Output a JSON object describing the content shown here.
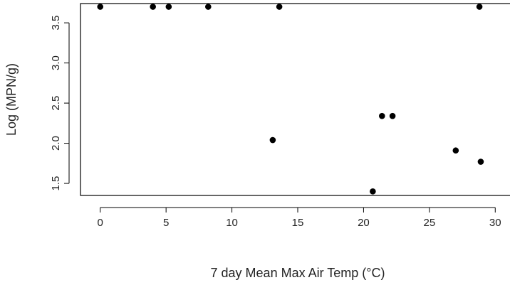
{
  "chart_data": {
    "type": "scatter",
    "title": "",
    "xlabel": "7 day Mean Max Air Temp (°C)",
    "ylabel": "Log (MPN/g)",
    "xlim": [
      -1.5,
      31.5
    ],
    "ylim": [
      1.35,
      3.74
    ],
    "xticks": [
      0,
      5,
      10,
      15,
      20,
      25,
      30
    ],
    "yticks": [
      1.5,
      2.0,
      2.5,
      3.0,
      3.5
    ],
    "xtick_labels": [
      "0",
      "5",
      "10",
      "15",
      "20",
      "25",
      "30"
    ],
    "ytick_labels": [
      "1.5",
      "2.0",
      "2.5",
      "3.0",
      "3.5"
    ],
    "grid": false,
    "legend": "none",
    "point_color": "#000000",
    "points": [
      {
        "x": 0.0,
        "y": 3.7
      },
      {
        "x": 4.0,
        "y": 3.7
      },
      {
        "x": 5.2,
        "y": 3.7
      },
      {
        "x": 8.2,
        "y": 3.7
      },
      {
        "x": 13.6,
        "y": 3.7
      },
      {
        "x": 28.8,
        "y": 3.7
      },
      {
        "x": 13.1,
        "y": 2.04
      },
      {
        "x": 20.7,
        "y": 1.4
      },
      {
        "x": 21.4,
        "y": 2.34
      },
      {
        "x": 22.2,
        "y": 2.34
      },
      {
        "x": 27.0,
        "y": 1.91
      },
      {
        "x": 28.9,
        "y": 1.77
      }
    ]
  }
}
